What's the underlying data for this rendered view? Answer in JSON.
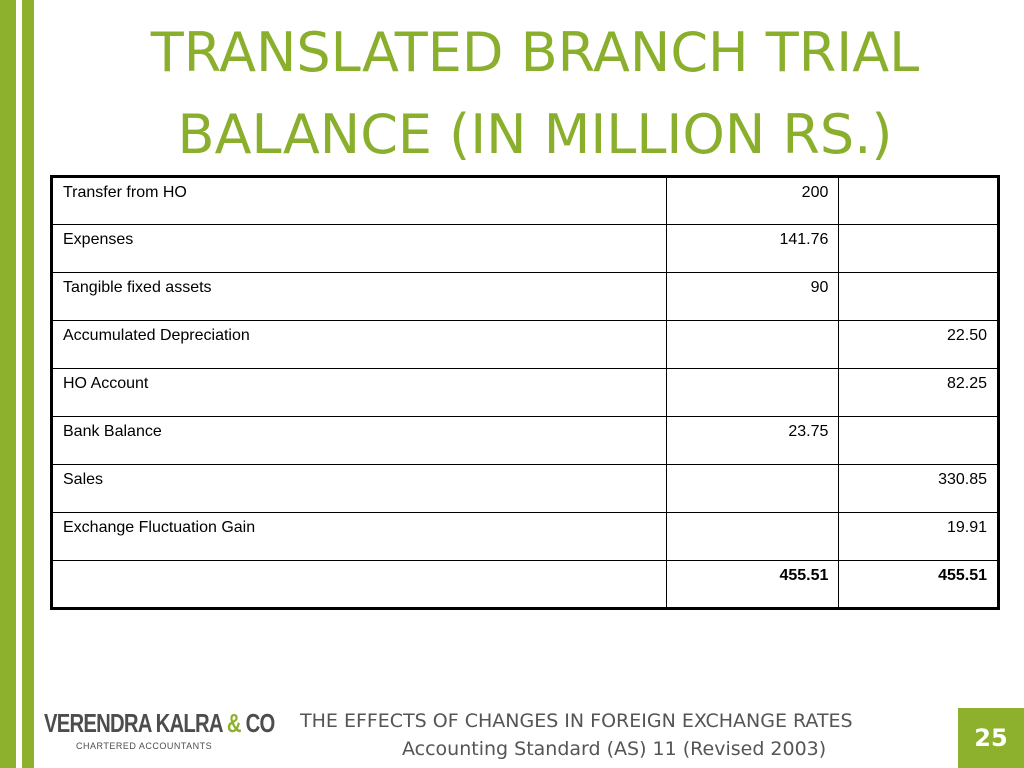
{
  "slide": {
    "title_line1": "TRANSLATED BRANCH TRIAL",
    "title_line2": "BALANCE  (IN MILLION RS.)",
    "accent_color": "#8db12c"
  },
  "table": {
    "rows": [
      {
        "label": "Transfer from HO",
        "debit": "200",
        "credit": ""
      },
      {
        "label": "Expenses",
        "debit": "141.76",
        "credit": ""
      },
      {
        "label": "Tangible fixed assets",
        "debit": "90",
        "credit": ""
      },
      {
        "label": "Accumulated Depreciation",
        "debit": "",
        "credit": "22.50"
      },
      {
        "label": "HO Account",
        "debit": "",
        "credit": "82.25"
      },
      {
        "label": "Bank Balance",
        "debit": "23.75",
        "credit": ""
      },
      {
        "label": "Sales",
        "debit": "",
        "credit": "330.85"
      },
      {
        "label": "Exchange Fluctuation Gain",
        "debit": "",
        "credit": "19.91"
      }
    ],
    "total": {
      "label": "",
      "debit": "455.51",
      "credit": "455.51"
    }
  },
  "logo": {
    "name_part1": "VERENDRA KALRA ",
    "ampersand": "&",
    "name_part2": " CO",
    "subtitle": "CHARTERED ACCOUNTANTS"
  },
  "footer": {
    "line1": "THE EFFECTS OF CHANGES IN FOREIGN EXCHANGE RATES",
    "line2": "Accounting Standard (AS) 11 (Revised 2003)"
  },
  "page_number": "25"
}
